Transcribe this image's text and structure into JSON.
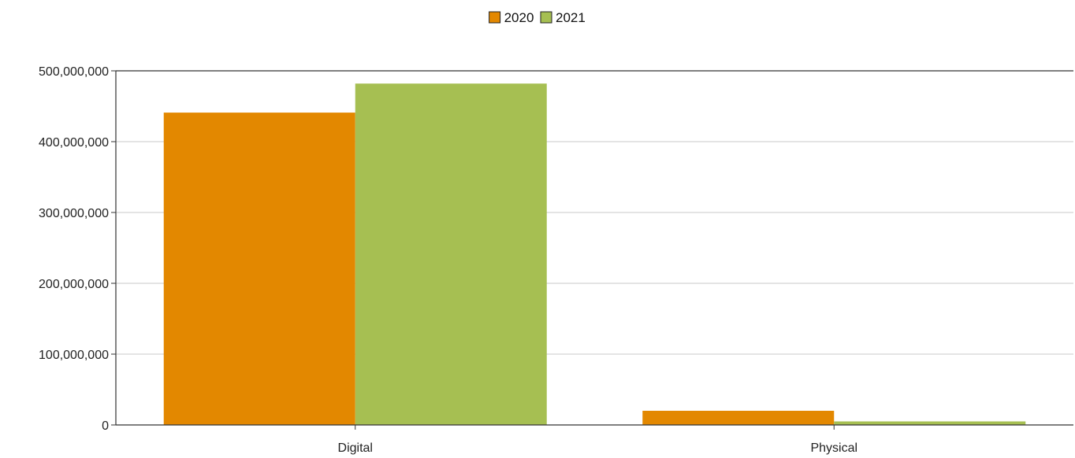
{
  "chart_data": {
    "type": "bar",
    "categories": [
      "Digital",
      "Physical"
    ],
    "series": [
      {
        "name": "2020",
        "values": [
          441000000,
          20000000
        ],
        "color": "#e38800"
      },
      {
        "name": "2021",
        "values": [
          482000000,
          5000000
        ],
        "color": "#a6bf52"
      }
    ],
    "ylim": [
      0,
      500000000
    ],
    "yticks": [
      0,
      100000000,
      200000000,
      300000000,
      400000000,
      500000000
    ],
    "ytick_labels": [
      "0",
      "100,000,000",
      "200,000,000",
      "300,000,000",
      "400,000,000",
      "500,000,000"
    ],
    "grid": true,
    "legend_position": "top-center"
  }
}
